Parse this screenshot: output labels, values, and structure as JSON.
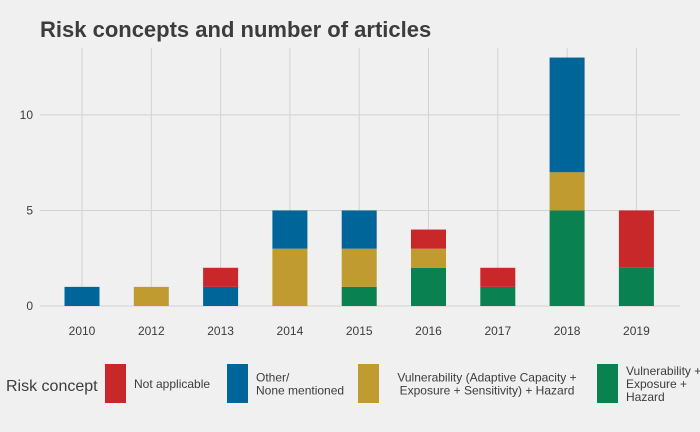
{
  "chart_data": {
    "type": "bar",
    "stacked": true,
    "title": "Risk concepts and number of articles",
    "xlabel": "",
    "ylabel": "",
    "categories": [
      "2010",
      "2012",
      "2013",
      "2014",
      "2015",
      "2016",
      "2017",
      "2018",
      "2019"
    ],
    "ylim": [
      0,
      13.5
    ],
    "yticks": [
      0,
      5,
      10
    ],
    "grid": true,
    "legend": {
      "title": "Risk concept",
      "position": "bottom",
      "entries": [
        {
          "key": "na",
          "lines": [
            "Not applicable"
          ]
        },
        {
          "key": "other",
          "lines": [
            "Other/",
            "None mentioned"
          ]
        },
        {
          "key": "vuln_full",
          "lines": [
            "Vulnerability (Adaptive Capacity +",
            "Exposure + Sensitivity) + Hazard"
          ]
        },
        {
          "key": "vuln_exp",
          "lines": [
            "Vulnerability +",
            "Exposure +",
            "Hazard"
          ]
        }
      ]
    },
    "series": [
      {
        "key": "vuln_exp",
        "color": "#0a8150",
        "values": [
          0,
          0,
          0,
          0,
          1,
          2,
          1,
          5,
          2
        ]
      },
      {
        "key": "vuln_full",
        "color": "#bf9b30",
        "values": [
          0,
          1,
          0,
          3,
          2,
          1,
          0,
          2,
          0
        ]
      },
      {
        "key": "other",
        "color": "#006699",
        "values": [
          1,
          0,
          1,
          2,
          2,
          0,
          0,
          6,
          0
        ]
      },
      {
        "key": "na",
        "color": "#c8282a",
        "values": [
          0,
          0,
          1,
          0,
          0,
          1,
          1,
          0,
          3
        ]
      }
    ]
  }
}
